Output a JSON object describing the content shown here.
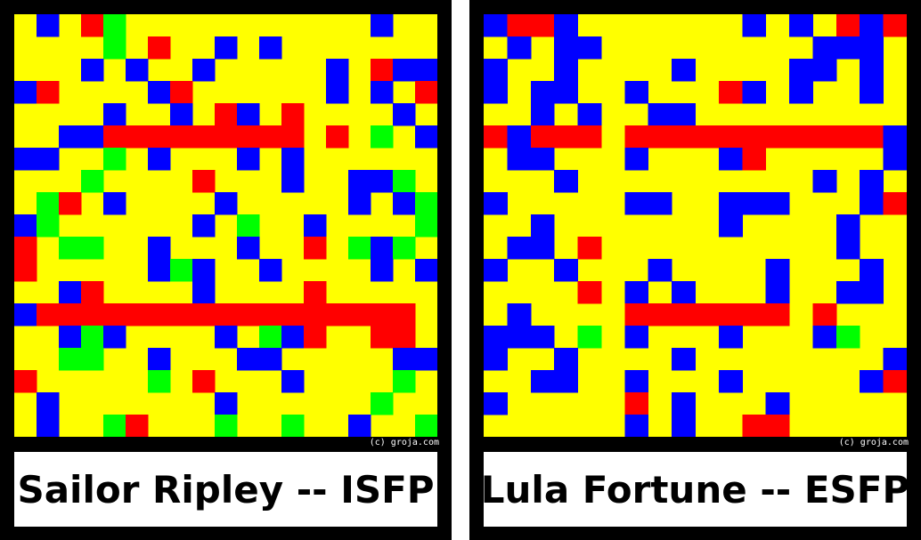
{
  "colors": {
    "Y": "#ffff00",
    "B": "#0000ff",
    "R": "#ff0000",
    "G": "#00ff00",
    "frame": "#000000",
    "gap": "#ffffff",
    "caption_background": "#ffffff",
    "caption_text": "#000000"
  },
  "panels": [
    {
      "caption": "Sailor Ripley -- ISFP",
      "copyright": "(c) groja.com",
      "grid": [
        "YBYRGYYYYYYYYYYYBYY",
        "YYYYGYRYYBYBYYYYYYY",
        "YYYBYBYYBYYYYYBYRBB",
        "BRYYYYBRYYYYYYBYBYR",
        "YYYYBYYBYRBYRYYYYBY",
        "YYBBRRRRRRRRRYRYGYB",
        "BBYYGYBYYYBYBYYYYYY",
        "YYYGYYYYRYYYBYYBBGY",
        "YGRYBYYYYBYYYYYBYBG",
        "BGYYYYYYBYGYYBYYYYG",
        "RYGGYYBYYYBYYRYGBGY",
        "RYYYYYBGBYYBYYYYBYB",
        "YYBRYYYYBYYYYRYYYYY",
        "BRRRRRRRRRRRRRRRRRY",
        "YYBGBYYYYBYGBRYYRRY",
        "YYGGYYBYYYBBYYYYYBB",
        "RYYYYYGYRYYYBYYYYGY",
        "YBYYYYYYYBYYYYYYGYY",
        "YBYYGRYYYGYYGYYBYYG"
      ]
    },
    {
      "caption": "Lula Fortune -- ESFP",
      "copyright": "(c) groja.com",
      "grid": [
        "BRRBYYYYYYYBYBYRBR",
        "YBYBBYYYYYYYYYBBBY",
        "BYYBYYYYBYYYYBBYBY",
        "BYBBYYBYYYRBYBYYBY",
        "YYBYBYYBBYYYYYYYYY",
        "RBRRRYRRRRRRRRRRRB",
        "YBBYYYBYYYBRYYYYYB",
        "YYYBYYYYYYYYYYBYBY",
        "BYYYYYBBYYBBBYYYBR",
        "YYBYYYYYYYBYYYYBYY",
        "YBBYRYYYYYYYYYYBYY",
        "BYYBYYYBYYYYBYYYBY",
        "YYYYRYBYBYYYBYYBBY",
        "YBYYYYRRRRRRRYRYYY",
        "BBBYGYBYYYBYYYBGYY",
        "BYYBYYYYBYYYYYYYYB",
        "YYBBYYBYYYBYYYYYBR",
        "BYYYYYRYBYYYBYYYYY",
        "YYYYYYBYBYYRRYYYYY"
      ]
    }
  ]
}
